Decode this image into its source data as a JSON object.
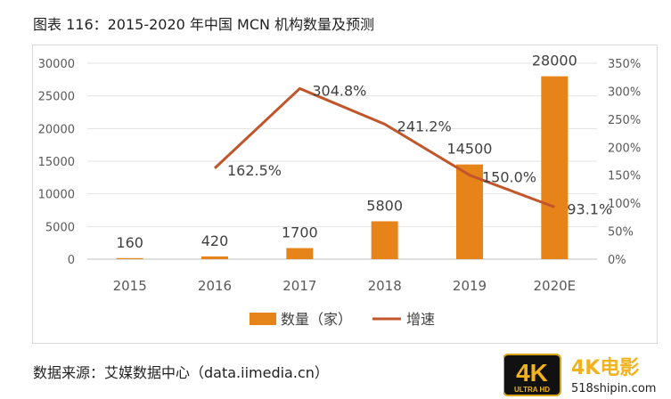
{
  "title": "图表 116：2015-2020 年中国 MCN 机构数量及预测",
  "source": "数据来源：艾媒数据中心（data.iimedia.cn）",
  "watermark": {
    "badge_top": "4K",
    "badge_bottom": "ULTRA HD",
    "brand": "4K电影",
    "site": "518shipin.com"
  },
  "chart_data": {
    "type": "bar+line",
    "categories": [
      "2015",
      "2016",
      "2017",
      "2018",
      "2019",
      "2020E"
    ],
    "series": [
      {
        "name": "数量（家）",
        "type": "bar",
        "axis": "left",
        "color": "#E6841A",
        "values": [
          160,
          420,
          1700,
          5800,
          14500,
          28000
        ],
        "labels": [
          "160",
          "420",
          "1700",
          "5800",
          "14500",
          "28000"
        ]
      },
      {
        "name": "增速",
        "type": "line",
        "axis": "right",
        "color": "#C0562A",
        "values": [
          null,
          162.5,
          304.8,
          241.2,
          150.0,
          93.1
        ],
        "labels": [
          "",
          "162.5%",
          "304.8%",
          "241.2%",
          "150.0%",
          "93.1%"
        ]
      }
    ],
    "left_axis": {
      "range": [
        0,
        30000
      ],
      "ticks": [
        "0",
        "5000",
        "10000",
        "15000",
        "20000",
        "25000",
        "30000"
      ]
    },
    "right_axis": {
      "range": [
        0,
        350
      ],
      "ticks": [
        "0%",
        "50%",
        "100%",
        "150%",
        "200%",
        "250%",
        "300%",
        "350%"
      ]
    },
    "grid": true,
    "legend": "bottom"
  }
}
